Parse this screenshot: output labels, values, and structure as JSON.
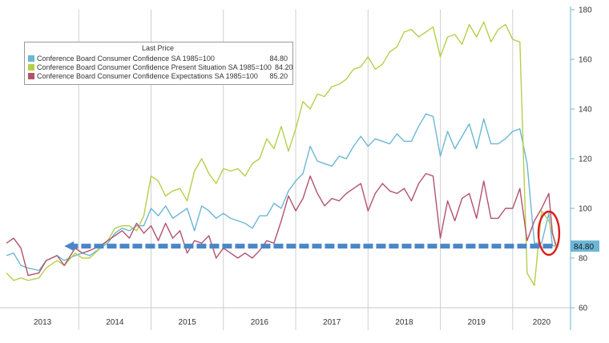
{
  "chart_data": {
    "type": "line",
    "legend": {
      "title": "Last Price",
      "placement": "top-left"
    },
    "series": [
      {
        "key": "headline",
        "name": "Conference Board Consumer Confidence SA 1985=100",
        "last_value": "84.80",
        "color": "#6cb6d6",
        "points": [
          [
            2013.0,
            81
          ],
          [
            2013.1,
            82
          ],
          [
            2013.2,
            77
          ],
          [
            2013.3,
            76
          ],
          [
            2013.45,
            75
          ],
          [
            2013.55,
            79
          ],
          [
            2013.7,
            81
          ],
          [
            2013.8,
            79
          ],
          [
            2013.95,
            81
          ],
          [
            2014.05,
            82
          ],
          [
            2014.15,
            81
          ],
          [
            2014.3,
            84
          ],
          [
            2014.4,
            86
          ],
          [
            2014.5,
            90
          ],
          [
            2014.6,
            92
          ],
          [
            2014.7,
            91
          ],
          [
            2014.8,
            93
          ],
          [
            2014.9,
            93
          ],
          [
            2015.0,
            100
          ],
          [
            2015.1,
            97
          ],
          [
            2015.2,
            101
          ],
          [
            2015.3,
            96
          ],
          [
            2015.4,
            98
          ],
          [
            2015.5,
            100
          ],
          [
            2015.6,
            91
          ],
          [
            2015.7,
            101
          ],
          [
            2015.8,
            99
          ],
          [
            2015.9,
            96
          ],
          [
            2016.0,
            98
          ],
          [
            2016.1,
            96
          ],
          [
            2016.2,
            95
          ],
          [
            2016.3,
            94
          ],
          [
            2016.4,
            92
          ],
          [
            2016.5,
            97
          ],
          [
            2016.6,
            97
          ],
          [
            2016.7,
            102
          ],
          [
            2016.8,
            100
          ],
          [
            2016.9,
            107
          ],
          [
            2017.0,
            111
          ],
          [
            2017.1,
            114
          ],
          [
            2017.2,
            125
          ],
          [
            2017.3,
            119
          ],
          [
            2017.4,
            118
          ],
          [
            2017.5,
            117
          ],
          [
            2017.6,
            121
          ],
          [
            2017.7,
            120
          ],
          [
            2017.8,
            125
          ],
          [
            2017.9,
            129
          ],
          [
            2018.0,
            125
          ],
          [
            2018.1,
            128
          ],
          [
            2018.2,
            127
          ],
          [
            2018.3,
            126
          ],
          [
            2018.4,
            130
          ],
          [
            2018.5,
            127
          ],
          [
            2018.6,
            127
          ],
          [
            2018.7,
            133
          ],
          [
            2018.8,
            138
          ],
          [
            2018.9,
            137
          ],
          [
            2019.0,
            121
          ],
          [
            2019.1,
            131
          ],
          [
            2019.2,
            124
          ],
          [
            2019.3,
            129
          ],
          [
            2019.4,
            134
          ],
          [
            2019.5,
            124
          ],
          [
            2019.6,
            136
          ],
          [
            2019.7,
            126
          ],
          [
            2019.8,
            126
          ],
          [
            2019.9,
            128
          ],
          [
            2020.0,
            131
          ],
          [
            2020.1,
            132
          ],
          [
            2020.2,
            118
          ],
          [
            2020.3,
            86
          ],
          [
            2020.4,
            86
          ],
          [
            2020.5,
            98
          ],
          [
            2020.55,
            85
          ],
          [
            2020.6,
            84.8
          ]
        ]
      },
      {
        "key": "present",
        "name": "Conference Board Consumer Confidence Present Situation SA 1985=100",
        "last_value": "84.20",
        "color": "#b5cf4a",
        "points": [
          [
            2013.0,
            74
          ],
          [
            2013.1,
            71
          ],
          [
            2013.2,
            72
          ],
          [
            2013.3,
            71
          ],
          [
            2013.45,
            72
          ],
          [
            2013.55,
            76
          ],
          [
            2013.7,
            79
          ],
          [
            2013.8,
            77
          ],
          [
            2013.95,
            82
          ],
          [
            2014.05,
            80
          ],
          [
            2014.15,
            80
          ],
          [
            2014.3,
            84
          ],
          [
            2014.4,
            87
          ],
          [
            2014.5,
            92
          ],
          [
            2014.6,
            93
          ],
          [
            2014.7,
            93
          ],
          [
            2014.8,
            91
          ],
          [
            2014.9,
            97
          ],
          [
            2015.0,
            113
          ],
          [
            2015.1,
            111
          ],
          [
            2015.2,
            105
          ],
          [
            2015.3,
            107
          ],
          [
            2015.4,
            108
          ],
          [
            2015.5,
            103
          ],
          [
            2015.6,
            115
          ],
          [
            2015.7,
            120
          ],
          [
            2015.8,
            114
          ],
          [
            2015.9,
            110
          ],
          [
            2016.0,
            116
          ],
          [
            2016.1,
            115
          ],
          [
            2016.2,
            116
          ],
          [
            2016.3,
            113
          ],
          [
            2016.4,
            118
          ],
          [
            2016.5,
            120
          ],
          [
            2016.6,
            128
          ],
          [
            2016.7,
            124
          ],
          [
            2016.8,
            133
          ],
          [
            2016.9,
            123
          ],
          [
            2017.0,
            132
          ],
          [
            2017.1,
            143
          ],
          [
            2017.2,
            140
          ],
          [
            2017.3,
            146
          ],
          [
            2017.4,
            145
          ],
          [
            2017.5,
            149
          ],
          [
            2017.6,
            150
          ],
          [
            2017.7,
            152
          ],
          [
            2017.8,
            156
          ],
          [
            2017.9,
            157
          ],
          [
            2018.0,
            161
          ],
          [
            2018.1,
            156
          ],
          [
            2018.2,
            158
          ],
          [
            2018.3,
            163
          ],
          [
            2018.4,
            165
          ],
          [
            2018.5,
            171
          ],
          [
            2018.6,
            172
          ],
          [
            2018.7,
            169
          ],
          [
            2018.8,
            171
          ],
          [
            2018.9,
            173
          ],
          [
            2019.0,
            161
          ],
          [
            2019.1,
            169
          ],
          [
            2019.2,
            170
          ],
          [
            2019.3,
            166
          ],
          [
            2019.4,
            174
          ],
          [
            2019.5,
            169
          ],
          [
            2019.6,
            175
          ],
          [
            2019.7,
            167
          ],
          [
            2019.8,
            172
          ],
          [
            2019.9,
            174
          ],
          [
            2020.0,
            168
          ],
          [
            2020.1,
            167
          ],
          [
            2020.2,
            74
          ],
          [
            2020.3,
            69
          ],
          [
            2020.4,
            99
          ],
          [
            2020.5,
            95
          ],
          [
            2020.55,
            90
          ],
          [
            2020.6,
            84.2
          ]
        ]
      },
      {
        "key": "expect",
        "name": "Conference Board Consumer Confidence Expectations SA 1985=100",
        "last_value": "85.20",
        "color": "#b2536b",
        "points": [
          [
            2013.0,
            86
          ],
          [
            2013.1,
            88
          ],
          [
            2013.2,
            84
          ],
          [
            2013.3,
            73
          ],
          [
            2013.45,
            74
          ],
          [
            2013.55,
            79
          ],
          [
            2013.7,
            81
          ],
          [
            2013.8,
            77
          ],
          [
            2013.95,
            84
          ],
          [
            2014.05,
            82
          ],
          [
            2014.15,
            83
          ],
          [
            2014.3,
            85
          ],
          [
            2014.4,
            87
          ],
          [
            2014.5,
            89
          ],
          [
            2014.6,
            91
          ],
          [
            2014.7,
            88
          ],
          [
            2014.8,
            94
          ],
          [
            2014.9,
            90
          ],
          [
            2015.0,
            93
          ],
          [
            2015.1,
            87
          ],
          [
            2015.2,
            94
          ],
          [
            2015.3,
            88
          ],
          [
            2015.4,
            91
          ],
          [
            2015.5,
            82
          ],
          [
            2015.6,
            87
          ],
          [
            2015.7,
            86
          ],
          [
            2015.8,
            89
          ],
          [
            2015.9,
            80
          ],
          [
            2016.0,
            84
          ],
          [
            2016.1,
            82
          ],
          [
            2016.2,
            80
          ],
          [
            2016.3,
            82
          ],
          [
            2016.4,
            80
          ],
          [
            2016.5,
            83
          ],
          [
            2016.6,
            87
          ],
          [
            2016.7,
            86
          ],
          [
            2016.8,
            95
          ],
          [
            2016.9,
            105
          ],
          [
            2017.0,
            99
          ],
          [
            2017.1,
            104
          ],
          [
            2017.2,
            113
          ],
          [
            2017.3,
            106
          ],
          [
            2017.4,
            101
          ],
          [
            2017.5,
            104
          ],
          [
            2017.6,
            103
          ],
          [
            2017.7,
            106
          ],
          [
            2017.8,
            108
          ],
          [
            2017.9,
            110
          ],
          [
            2018.0,
            99
          ],
          [
            2018.1,
            106
          ],
          [
            2018.2,
            110
          ],
          [
            2018.3,
            107
          ],
          [
            2018.4,
            106
          ],
          [
            2018.5,
            108
          ],
          [
            2018.6,
            103
          ],
          [
            2018.7,
            110
          ],
          [
            2018.8,
            114
          ],
          [
            2018.9,
            113
          ],
          [
            2019.0,
            88
          ],
          [
            2019.1,
            103
          ],
          [
            2019.2,
            95
          ],
          [
            2019.3,
            104
          ],
          [
            2019.4,
            106
          ],
          [
            2019.5,
            96
          ],
          [
            2019.6,
            111
          ],
          [
            2019.7,
            96
          ],
          [
            2019.8,
            96
          ],
          [
            2019.9,
            100
          ],
          [
            2020.0,
            100
          ],
          [
            2020.1,
            108
          ],
          [
            2020.2,
            87
          ],
          [
            2020.3,
            95
          ],
          [
            2020.4,
            100
          ],
          [
            2020.5,
            106
          ],
          [
            2020.55,
            90
          ],
          [
            2020.6,
            85.2
          ]
        ]
      }
    ],
    "axes": {
      "y": {
        "side": "right",
        "min": 60,
        "max": 180,
        "ticks": [
          "60",
          "80",
          "100",
          "120",
          "140",
          "160",
          "180"
        ]
      },
      "x": {
        "min": 2013,
        "max": 2020.8,
        "labels": [
          "2013",
          "2014",
          "2015",
          "2016",
          "2017",
          "2018",
          "2019",
          "2020"
        ],
        "ticks": [
          2013,
          2014,
          2015,
          2016,
          2017,
          2018,
          2019,
          2020
        ]
      }
    },
    "annotations": {
      "last_value_tag": {
        "text": "84.80",
        "color": "#6cb6d6"
      },
      "reference_level": 84.8,
      "arrow": {
        "from_x": 2020.55,
        "to_x": 2013.8,
        "y": 84.8,
        "color": "#4a86c8"
      },
      "highlight_ellipse": {
        "x": 2020.5,
        "y": 90,
        "color": "#d91e1e"
      }
    },
    "grid": "vertical year separators",
    "background": "#ffffff"
  }
}
